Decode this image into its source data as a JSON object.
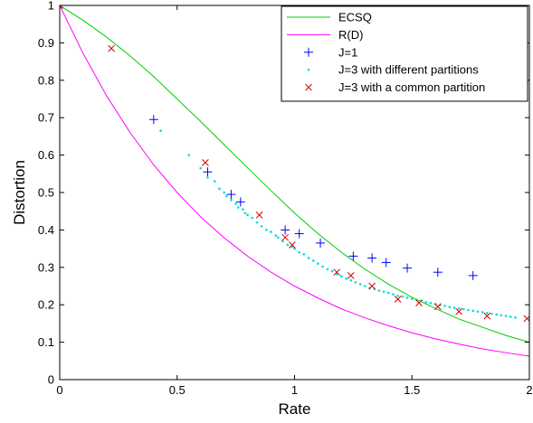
{
  "chart_data": {
    "type": "line",
    "xlabel": "Rate",
    "ylabel": "Distortion",
    "xlim": [
      0,
      2
    ],
    "ylim": [
      0,
      1
    ],
    "x_ticks": [
      "0",
      "0.5",
      "1",
      "1.5",
      "2"
    ],
    "y_ticks": [
      "0",
      "0.1",
      "0.2",
      "0.3",
      "0.4",
      "0.5",
      "0.6",
      "0.7",
      "0.8",
      "0.9",
      "1"
    ],
    "legend_position": "top-right",
    "series": [
      {
        "name": "ECSQ",
        "kind": "line",
        "color": "#00cc00",
        "x": [
          0,
          0.1,
          0.2,
          0.3,
          0.4,
          0.5,
          0.6,
          0.7,
          0.8,
          0.9,
          1.0,
          1.1,
          1.2,
          1.3,
          1.4,
          1.5,
          1.6,
          1.7,
          1.8,
          1.9,
          2.0
        ],
        "y": [
          1.0,
          0.96,
          0.915,
          0.865,
          0.81,
          0.75,
          0.69,
          0.628,
          0.566,
          0.505,
          0.445,
          0.39,
          0.34,
          0.295,
          0.255,
          0.22,
          0.19,
          0.162,
          0.14,
          0.118,
          0.1
        ]
      },
      {
        "name": "R(D)",
        "kind": "line",
        "color": "#ff00ff",
        "x": [
          0,
          0.1,
          0.2,
          0.3,
          0.4,
          0.5,
          0.6,
          0.7,
          0.8,
          0.9,
          1.0,
          1.1,
          1.2,
          1.3,
          1.4,
          1.5,
          1.6,
          1.7,
          1.8,
          1.9,
          2.0
        ],
        "y": [
          1.0,
          0.871,
          0.758,
          0.66,
          0.574,
          0.5,
          0.435,
          0.379,
          0.33,
          0.287,
          0.25,
          0.218,
          0.189,
          0.165,
          0.144,
          0.125,
          0.109,
          0.095,
          0.082,
          0.072,
          0.0625
        ]
      },
      {
        "name": "J=1",
        "kind": "scatter",
        "marker": "plus",
        "color": "#0000ff",
        "x": [
          0.0,
          0.4,
          0.63,
          0.73,
          0.77,
          0.96,
          1.02,
          1.11,
          1.25,
          1.33,
          1.39,
          1.48,
          1.61,
          1.76
        ],
        "y": [
          1.0,
          0.695,
          0.555,
          0.495,
          0.475,
          0.4,
          0.39,
          0.365,
          0.33,
          0.325,
          0.313,
          0.298,
          0.287,
          0.278
        ]
      },
      {
        "name": "J=3 with different partitions",
        "kind": "scatter",
        "marker": "dot",
        "color": "#00dddd",
        "x": [
          0.43,
          0.55,
          0.6,
          0.63,
          0.66,
          0.68,
          0.7,
          0.71,
          0.73,
          0.75,
          0.76,
          0.78,
          0.79,
          0.8,
          0.82,
          0.84,
          0.86,
          0.88,
          0.9,
          0.92,
          0.93,
          0.95,
          0.97,
          0.99,
          1.0,
          1.02,
          1.04,
          1.06,
          1.08,
          1.1,
          1.12,
          1.14,
          1.16,
          1.18,
          1.2,
          1.22,
          1.24,
          1.26,
          1.28,
          1.3,
          1.32,
          1.34,
          1.36,
          1.38,
          1.4,
          1.42,
          1.44,
          1.46,
          1.48,
          1.5,
          1.52,
          1.54,
          1.56,
          1.58,
          1.6,
          1.62,
          1.64,
          1.66,
          1.68,
          1.7,
          1.72,
          1.74,
          1.76,
          1.78,
          1.8,
          1.82,
          1.84,
          1.86,
          1.88,
          1.9,
          1.92,
          1.94
        ],
        "y": [
          0.665,
          0.6,
          0.565,
          0.54,
          0.53,
          0.51,
          0.5,
          0.49,
          0.48,
          0.47,
          0.46,
          0.455,
          0.445,
          0.44,
          0.432,
          0.42,
          0.41,
          0.4,
          0.395,
          0.385,
          0.38,
          0.37,
          0.36,
          0.355,
          0.35,
          0.34,
          0.335,
          0.325,
          0.318,
          0.31,
          0.302,
          0.295,
          0.29,
          0.282,
          0.276,
          0.27,
          0.265,
          0.26,
          0.255,
          0.25,
          0.245,
          0.242,
          0.238,
          0.235,
          0.232,
          0.228,
          0.224,
          0.222,
          0.219,
          0.216,
          0.213,
          0.21,
          0.207,
          0.205,
          0.202,
          0.199,
          0.197,
          0.194,
          0.192,
          0.19,
          0.188,
          0.186,
          0.184,
          0.182,
          0.18,
          0.178,
          0.176,
          0.174,
          0.172,
          0.17,
          0.168,
          0.166
        ]
      },
      {
        "name": "J=3 with a common partition",
        "kind": "scatter",
        "marker": "x",
        "color": "#dd0000",
        "x": [
          0.0,
          0.22,
          0.62,
          0.85,
          0.96,
          0.99,
          1.18,
          1.24,
          1.33,
          1.44,
          1.53,
          1.61,
          1.7,
          1.82,
          1.99
        ],
        "y": [
          1.0,
          0.885,
          0.58,
          0.44,
          0.38,
          0.36,
          0.287,
          0.278,
          0.25,
          0.215,
          0.205,
          0.195,
          0.182,
          0.17,
          0.163
        ]
      }
    ]
  }
}
